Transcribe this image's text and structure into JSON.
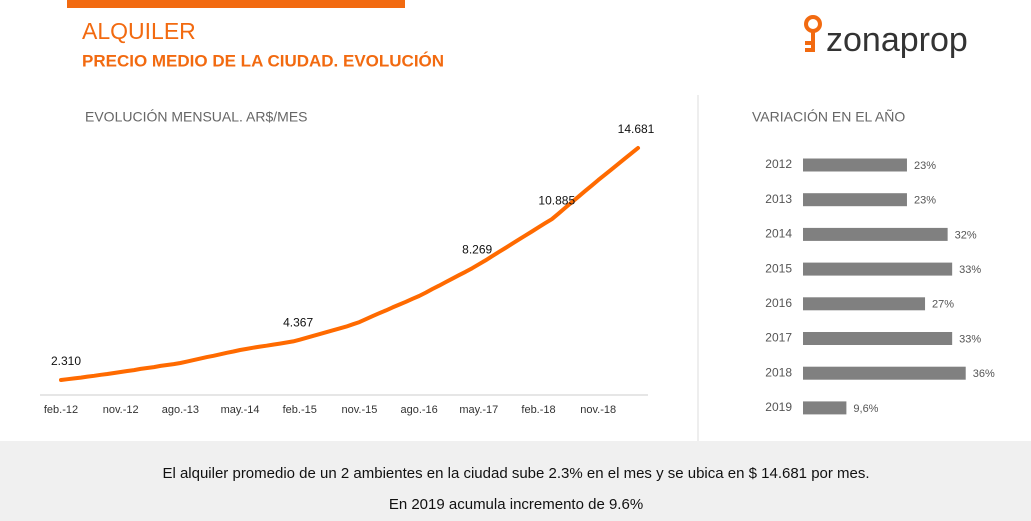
{
  "header": {
    "title": "ALQUILER",
    "subtitle": "PRECIO MEDIO DE LA CIUDAD. EVOLUCIÓN"
  },
  "logo": "zonaprop",
  "chart_data": [
    {
      "type": "line",
      "title": "EVOLUCIÓN MENSUAL. AR$/MES",
      "color": "#ff6a00",
      "categories": [
        "feb.-12",
        null,
        null,
        null,
        null,
        null,
        null,
        null,
        null,
        "nov.-12",
        null,
        null,
        null,
        null,
        null,
        null,
        null,
        null,
        "ago.-13",
        null,
        null,
        null,
        null,
        null,
        null,
        null,
        null,
        "may.-14",
        null,
        null,
        null,
        null,
        null,
        null,
        null,
        null,
        "feb.-15",
        null,
        null,
        null,
        null,
        null,
        null,
        null,
        null,
        "nov.-15",
        null,
        null,
        null,
        null,
        null,
        null,
        null,
        null,
        "ago.-16",
        null,
        null,
        null,
        null,
        null,
        null,
        null,
        null,
        "may.-17",
        null,
        null,
        null,
        null,
        null,
        null,
        null,
        null,
        "feb.-18",
        null,
        null,
        null,
        null,
        null,
        null,
        null,
        null,
        "nov.-18",
        null,
        null,
        null,
        null,
        null,
        null
      ],
      "values": [
        2310,
        2350,
        2395,
        2440,
        2490,
        2535,
        2585,
        2630,
        2685,
        2737,
        2790,
        2840,
        2900,
        2950,
        3000,
        3060,
        3110,
        3160,
        3216,
        3290,
        3370,
        3450,
        3530,
        3600,
        3680,
        3760,
        3830,
        3910,
        3970,
        4030,
        4090,
        4140,
        4200,
        4250,
        4310,
        4367,
        4460,
        4560,
        4660,
        4760,
        4860,
        4960,
        5060,
        5160,
        5280,
        5400,
        5560,
        5720,
        5870,
        6020,
        6180,
        6330,
        6480,
        6640,
        6790,
        6970,
        7160,
        7340,
        7530,
        7710,
        7900,
        8080,
        8269,
        8480,
        8690,
        8910,
        9130,
        9350,
        9570,
        9790,
        10010,
        10230,
        10450,
        10670,
        10885,
        11180,
        11480,
        11780,
        12080,
        12380,
        12670,
        12970,
        13250,
        13540,
        13820,
        14110,
        14400,
        14681
      ],
      "value_labels": [
        "2.310",
        null,
        null,
        null,
        null,
        null,
        null,
        null,
        null,
        null,
        null,
        null,
        null,
        null,
        null,
        null,
        null,
        null,
        null,
        null,
        null,
        null,
        null,
        null,
        null,
        null,
        null,
        null,
        null,
        null,
        null,
        null,
        null,
        null,
        null,
        "4.367",
        null,
        null,
        null,
        null,
        null,
        null,
        null,
        null,
        null,
        null,
        null,
        null,
        null,
        null,
        null,
        null,
        null,
        null,
        null,
        null,
        null,
        null,
        null,
        null,
        null,
        null,
        "8.269",
        null,
        null,
        null,
        null,
        null,
        null,
        null,
        null,
        null,
        null,
        null,
        "10.885",
        null,
        null,
        null,
        null,
        null,
        null,
        null,
        null,
        null,
        null,
        null,
        null,
        "14.681"
      ]
    },
    {
      "type": "hbar",
      "title": "VARIACIÓN EN EL AÑO",
      "color": "#808080",
      "categories": [
        "2012",
        "2013",
        "2014",
        "2015",
        "2016",
        "2017",
        "2018",
        "2019"
      ],
      "values": [
        23,
        23,
        32,
        33,
        27,
        33,
        36,
        9.6
      ],
      "value_labels": [
        "23%",
        "23%",
        "32%",
        "33%",
        "27%",
        "33%",
        "36%",
        "9,6%"
      ]
    }
  ],
  "footer": [
    "El alquiler promedio de un 2 ambientes en la ciudad sube 2.3% en el mes y se ubica en $ 14.681 por mes.",
    "En 2019 acumula incremento de 9.6%"
  ]
}
